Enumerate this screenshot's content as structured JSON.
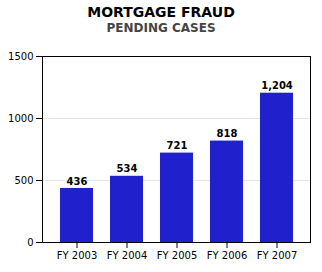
{
  "chart_data": {
    "type": "bar",
    "title": "MORTGAGE FRAUD",
    "subtitle": "PENDING CASES",
    "categories": [
      "FY 2003",
      "FY 2004",
      "FY 2005",
      "FY 2006",
      "FY 2007"
    ],
    "values": [
      436,
      534,
      721,
      818,
      1204
    ],
    "value_labels": [
      "436",
      "534",
      "721",
      "818",
      "1,204"
    ],
    "data_labels": true,
    "color": "#2020cc",
    "ylim": [
      0,
      1500
    ],
    "yticks": [
      0,
      500,
      1000,
      1500
    ],
    "grid": true
  }
}
